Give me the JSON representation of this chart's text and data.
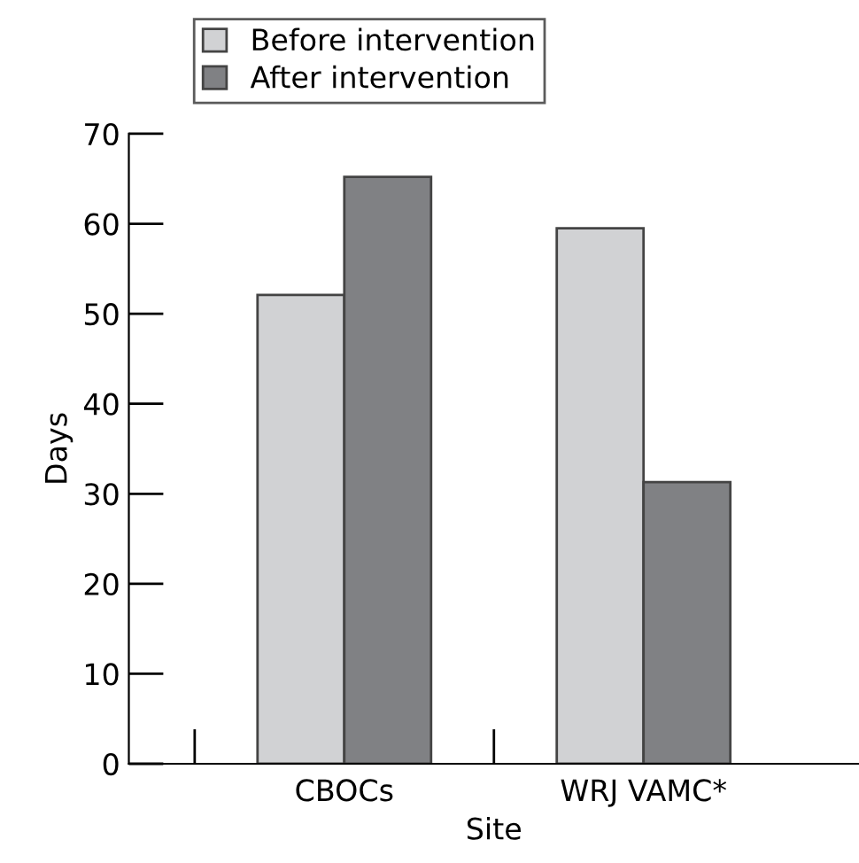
{
  "chart_data": {
    "type": "bar",
    "categories": [
      "CBOCs",
      "WRJ VAMC*"
    ],
    "xlabel": "Site",
    "ylabel": "Days",
    "series": [
      {
        "name": "Before intervention",
        "color": "#d1d2d4",
        "values": [
          52.1,
          59.5
        ]
      },
      {
        "name": "After intervention",
        "color": "#808184",
        "values": [
          65.2,
          31.3
        ]
      }
    ],
    "ylim": [
      0,
      70
    ],
    "yticks": [
      0,
      10,
      20,
      30,
      40,
      50,
      60,
      70
    ],
    "grid": false,
    "legend": "top"
  }
}
